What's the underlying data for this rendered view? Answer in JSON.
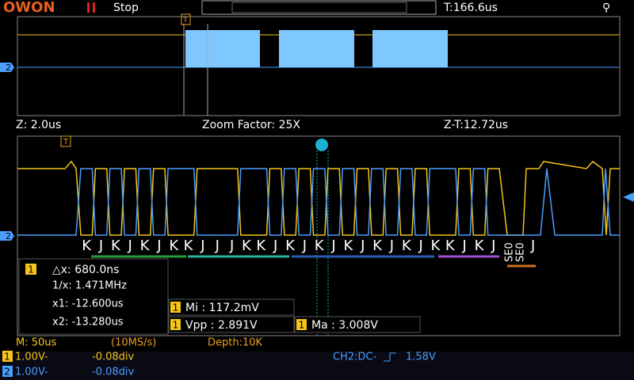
{
  "header": {
    "logo": "OWON",
    "run_state": "Stop",
    "trigger_time": "T:166.6us"
  },
  "zoom_bar": {
    "zoom_time": "Z: 2.0us",
    "zoom_factor": "Zoom Factor: 25X",
    "zoom_trigger": "Z-T:12.72us"
  },
  "markers": {
    "trigger": "T",
    "channel2": "2"
  },
  "decode": {
    "symbols": [
      "K",
      "J",
      "K",
      "J",
      "K",
      "J",
      "K",
      "K",
      "J",
      "J",
      "J",
      "K",
      "K",
      "J",
      "K",
      "J",
      "K",
      "J",
      "K",
      "J",
      "K",
      "J",
      "K",
      "J",
      "K",
      "K",
      "J",
      "K",
      "J"
    ],
    "tail": [
      "SE0",
      "SE0",
      "J"
    ]
  },
  "cursor_box": {
    "channel": "1",
    "delta_x": "△x: 680.0ns",
    "inverse_x": "1/x: 1.471MHz",
    "x1": "x1: -12.600us",
    "x2": "x2: -13.280us"
  },
  "measurements": [
    {
      "channel": "1",
      "label": "Mi : 117.2mV"
    },
    {
      "channel": "1",
      "label": "Vpp : 2.891V"
    },
    {
      "channel": "1",
      "label": "Ma : 3.008V"
    }
  ],
  "status": {
    "timebase": "M: 50us",
    "sample_rate": "(10MS/s)",
    "depth": "Depth:10K",
    "ch1": {
      "channel": "1",
      "scale": "1.00V-",
      "offset": "-0.08div"
    },
    "ch2": {
      "channel": "2",
      "scale": "1.00V-",
      "offset": "-0.08div"
    },
    "trigger_source": "CH2:DC-",
    "trigger_level": "1.58V"
  }
}
